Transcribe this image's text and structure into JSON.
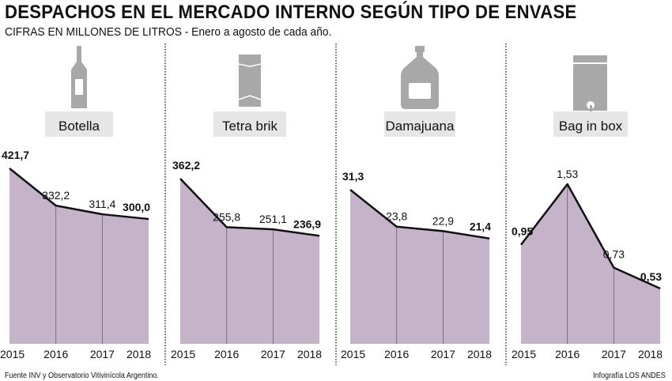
{
  "title": "DESPACHOS EN EL MERCADO INTERNO SEGÚN TIPO DE ENVASE",
  "subtitle": "CIFRAS EN MILLONES DE LITROS - Enero a agosto de cada año.",
  "source": "Fuente INV y Observatorio Vitivinícola Argentino.",
  "credit": "Infografía LOS ANDES",
  "colors": {
    "fill": "#c4b3c9",
    "line": "#111111",
    "icon": "#a8a8a8",
    "label_bg": "#e6e6e6"
  },
  "chart_data": [
    {
      "type": "area",
      "title": "Botella",
      "icon": "bottle-icon",
      "x": [
        "2015",
        "2016",
        "2017",
        "2018"
      ],
      "values": [
        421.7,
        332.2,
        311.4,
        300.0
      ],
      "labels": [
        "421,7",
        "332,2",
        "311,4",
        "300,0"
      ],
      "ylim": [
        0,
        421.7
      ]
    },
    {
      "type": "area",
      "title": "Tetra brik",
      "icon": "tetra-brik-icon",
      "x": [
        "2015",
        "2016",
        "2017",
        "2018"
      ],
      "values": [
        362.2,
        255.8,
        251.1,
        236.9
      ],
      "labels": [
        "362,2",
        "255,8",
        "251,1",
        "236,9"
      ],
      "ylim": [
        0,
        362.2
      ]
    },
    {
      "type": "area",
      "title": "Damajuana",
      "icon": "demijohn-icon",
      "x": [
        "2015",
        "2016",
        "2017",
        "2018"
      ],
      "values": [
        31.3,
        23.8,
        22.9,
        21.4
      ],
      "labels": [
        "31,3",
        "23,8",
        "22,9",
        "21,4"
      ],
      "ylim": [
        0,
        31.3
      ]
    },
    {
      "type": "area",
      "title": "Bag in box",
      "icon": "bag-in-box-icon",
      "x": [
        "2015",
        "2016",
        "2017",
        "2018"
      ],
      "values": [
        0.95,
        1.53,
        0.73,
        0.53
      ],
      "labels": [
        "0,95",
        "1,53",
        "0,73",
        "0,53"
      ],
      "ylim": [
        0,
        1.53
      ]
    }
  ]
}
